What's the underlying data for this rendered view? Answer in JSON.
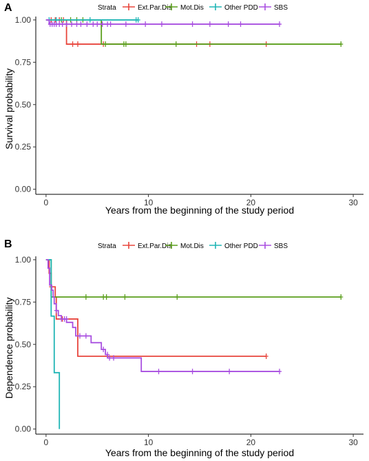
{
  "chart_data": [
    {
      "panel": "A",
      "type": "line",
      "xlabel": "Years from the beginning of the study period",
      "ylabel": "Survival probability",
      "xlim": [
        -1,
        31
      ],
      "ylim": [
        -0.03,
        1.02
      ],
      "xticks": [
        "0",
        "10",
        "20",
        "30"
      ],
      "yticks": [
        "0.00",
        "0.25",
        "0.50",
        "0.75",
        "1.00"
      ],
      "grid": false,
      "legend": {
        "title": "Strata",
        "position": "top"
      },
      "series": [
        {
          "name": "Ext.Par.Dis",
          "color": "#E8453C",
          "steps": [
            [
              0,
              1.0
            ],
            [
              2.0,
              0.857
            ],
            [
              21.5,
              0.857
            ]
          ],
          "censor": [
            [
              0.5,
              1.0
            ],
            [
              0.9,
              1.0
            ],
            [
              1.3,
              1.0
            ],
            [
              1.7,
              1.0
            ],
            [
              2.6,
              0.857
            ],
            [
              3.1,
              0.857
            ],
            [
              5.6,
              0.857
            ],
            [
              14.7,
              0.857
            ],
            [
              16.0,
              0.857
            ],
            [
              21.5,
              0.857
            ]
          ]
        },
        {
          "name": "Mot.Dis",
          "color": "#5A9E1B",
          "steps": [
            [
              0,
              1.0
            ],
            [
              5.4,
              0.857
            ],
            [
              28.8,
              0.857
            ]
          ],
          "censor": [
            [
              1.5,
              1.0
            ],
            [
              2.4,
              1.0
            ],
            [
              3.0,
              1.0
            ],
            [
              3.6,
              1.0
            ],
            [
              5.8,
              0.857
            ],
            [
              7.6,
              0.857
            ],
            [
              7.8,
              0.857
            ],
            [
              12.7,
              0.857
            ],
            [
              28.8,
              0.857
            ]
          ]
        },
        {
          "name": "Other PDD",
          "color": "#1FB5B5",
          "steps": [
            [
              0,
              1.0
            ],
            [
              9.0,
              1.0
            ]
          ],
          "censor": [
            [
              0.3,
              1.0
            ],
            [
              1.0,
              1.0
            ],
            [
              4.3,
              1.0
            ],
            [
              8.8,
              1.0
            ],
            [
              9.0,
              1.0
            ]
          ]
        },
        {
          "name": "SBS",
          "color": "#A84EE0",
          "steps": [
            [
              0,
              1.0
            ],
            [
              0.3,
              0.975
            ],
            [
              22.8,
              0.975
            ]
          ],
          "censor": [
            [
              0.4,
              0.975
            ],
            [
              0.6,
              0.975
            ],
            [
              0.8,
              0.975
            ],
            [
              1.0,
              0.975
            ],
            [
              1.3,
              0.975
            ],
            [
              1.6,
              0.975
            ],
            [
              2.0,
              0.975
            ],
            [
              2.5,
              0.975
            ],
            [
              3.0,
              0.975
            ],
            [
              3.4,
              0.975
            ],
            [
              4.0,
              0.975
            ],
            [
              4.6,
              0.975
            ],
            [
              5.0,
              0.975
            ],
            [
              5.5,
              0.975
            ],
            [
              6.0,
              0.975
            ],
            [
              6.3,
              0.975
            ],
            [
              7.8,
              0.975
            ],
            [
              9.7,
              0.975
            ],
            [
              11.3,
              0.975
            ],
            [
              14.3,
              0.975
            ],
            [
              16.0,
              0.975
            ],
            [
              17.8,
              0.975
            ],
            [
              19.0,
              0.975
            ],
            [
              22.8,
              0.975
            ]
          ]
        }
      ]
    },
    {
      "panel": "B",
      "type": "line",
      "xlabel": "Years from the beginning of the study period",
      "ylabel": "Dependence probability",
      "xlim": [
        -1,
        31
      ],
      "ylim": [
        -0.03,
        1.02
      ],
      "xticks": [
        "0",
        "10",
        "20",
        "30"
      ],
      "yticks": [
        "0.00",
        "0.25",
        "0.50",
        "0.75",
        "1.00"
      ],
      "grid": false,
      "legend": {
        "title": "Strata",
        "position": "top"
      },
      "series": [
        {
          "name": "Ext.Par.Dis",
          "color": "#E8453C",
          "steps": [
            [
              0,
              1.0
            ],
            [
              0.3,
              0.92
            ],
            [
              0.5,
              0.84
            ],
            [
              0.9,
              0.78
            ],
            [
              1.0,
              0.65
            ],
            [
              3.1,
              0.43
            ],
            [
              21.5,
              0.43
            ]
          ],
          "censor": [
            [
              0.5,
              0.84
            ],
            [
              1.6,
              0.65
            ],
            [
              21.5,
              0.43
            ]
          ]
        },
        {
          "name": "Mot.Dis",
          "color": "#5A9E1B",
          "steps": [
            [
              0,
              1.0
            ],
            [
              0.5,
              0.78
            ],
            [
              28.8,
              0.78
            ]
          ],
          "censor": [
            [
              3.9,
              0.78
            ],
            [
              5.6,
              0.78
            ],
            [
              5.9,
              0.78
            ],
            [
              7.7,
              0.78
            ],
            [
              12.8,
              0.78
            ],
            [
              28.8,
              0.78
            ]
          ]
        },
        {
          "name": "Other PDD",
          "color": "#1FB5B5",
          "steps": [
            [
              0,
              1.0
            ],
            [
              0.5,
              0.667
            ],
            [
              0.8,
              0.333
            ],
            [
              1.3,
              0.0
            ]
          ],
          "censor": []
        },
        {
          "name": "SBS",
          "color": "#A84EE0",
          "steps": [
            [
              0,
              1.0
            ],
            [
              0.2,
              0.95
            ],
            [
              0.35,
              0.85
            ],
            [
              0.55,
              0.82
            ],
            [
              0.7,
              0.78
            ],
            [
              0.8,
              0.74
            ],
            [
              1.0,
              0.7
            ],
            [
              1.2,
              0.67
            ],
            [
              1.5,
              0.65
            ],
            [
              2.0,
              0.63
            ],
            [
              2.6,
              0.6
            ],
            [
              2.9,
              0.55
            ],
            [
              4.4,
              0.51
            ],
            [
              5.4,
              0.47
            ],
            [
              5.8,
              0.44
            ],
            [
              6.0,
              0.42
            ],
            [
              9.3,
              0.34
            ],
            [
              22.8,
              0.34
            ]
          ],
          "censor": [
            [
              1.0,
              0.7
            ],
            [
              1.5,
              0.65
            ],
            [
              1.8,
              0.65
            ],
            [
              2.0,
              0.65
            ],
            [
              3.3,
              0.55
            ],
            [
              3.9,
              0.55
            ],
            [
              5.6,
              0.47
            ],
            [
              6.0,
              0.44
            ],
            [
              6.2,
              0.42
            ],
            [
              6.6,
              0.42
            ],
            [
              11.0,
              0.34
            ],
            [
              14.3,
              0.34
            ],
            [
              17.9,
              0.34
            ],
            [
              22.8,
              0.34
            ]
          ]
        }
      ]
    }
  ]
}
